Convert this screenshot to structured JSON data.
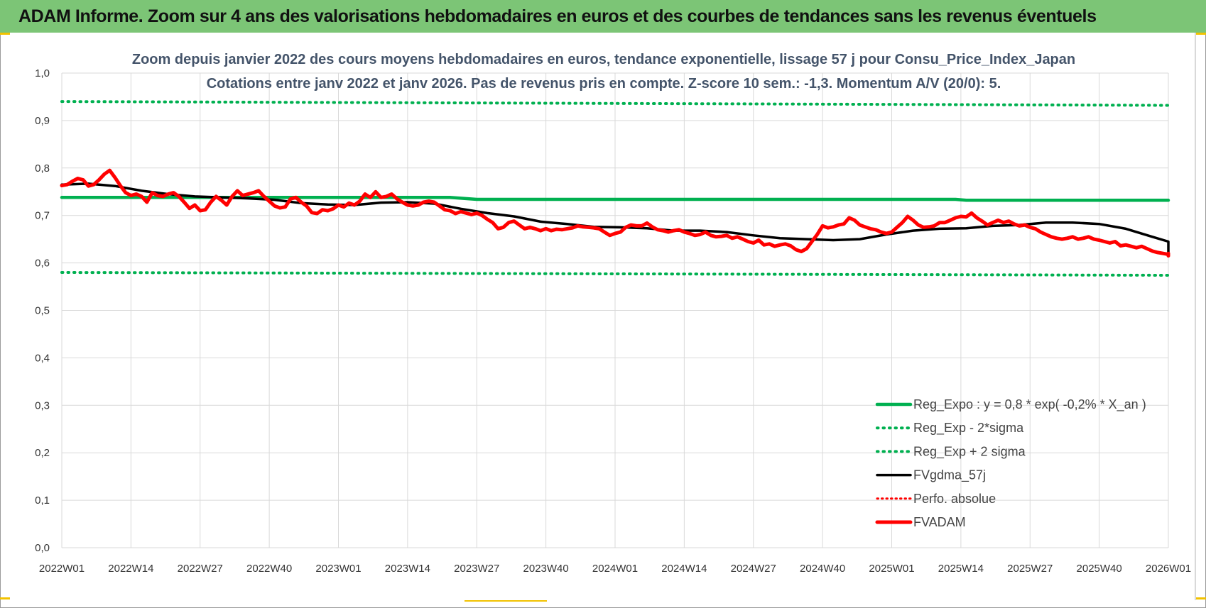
{
  "page_title": "ADAM Informe. Zoom sur 4 ans des valorisations hebdomadaires en euros et des courbes de tendances sans les revenus éventuels",
  "colors": {
    "title_bar": "#7cc576",
    "reg_expo": "#00b050",
    "sigma_bands": "#00b050",
    "fvgdma": "#000000",
    "perfo": "#ff0000",
    "fvadam": "#ff0000",
    "subtitle": "#44546a",
    "grid": "#d9d9d9"
  },
  "chart_data": {
    "type": "line",
    "title": "Zoom depuis janvier 2022 des cours moyens hebdomadaires en euros, tendance exponentielle, lissage 57 j pour Consu_Price_Index_Japan",
    "subtitle": "Cotations entre janv 2022 et janv 2026. Pas de revenus pris en compte. Z-score 10 sem.: -1,3. Momentum A/V (20/0): 5.",
    "ylim": [
      0,
      1
    ],
    "y_ticks": [
      "0,0",
      "0,1",
      "0,2",
      "0,3",
      "0,4",
      "0,5",
      "0,6",
      "0,7",
      "0,8",
      "0,9",
      "1,0"
    ],
    "x_ticks": [
      "2022W01",
      "2022W14",
      "2022W27",
      "2022W40",
      "2023W01",
      "2023W14",
      "2023W27",
      "2023W40",
      "2024W01",
      "2024W14",
      "2024W27",
      "2024W40",
      "2025W01",
      "2025W14",
      "2025W27",
      "2025W40",
      "2026W01"
    ],
    "grid": true,
    "legend_position": "bottom-right",
    "series": [
      {
        "name": "Reg_Expo : y = 0,8 * exp( -0,2% *  X_an )",
        "style": "solid",
        "points": [
          [
            0,
            0.738
          ],
          [
            73,
            0.738
          ],
          [
            78,
            0.734
          ],
          [
            168,
            0.734
          ],
          [
            170,
            0.732
          ],
          [
            208,
            0.732
          ]
        ]
      },
      {
        "name": "Reg_Exp - 2*sigma",
        "style": "dotted",
        "points": [
          [
            0,
            0.58
          ],
          [
            208,
            0.574
          ]
        ]
      },
      {
        "name": "Reg_Exp + 2 sigma",
        "style": "dotted",
        "points": [
          [
            0,
            0.94
          ],
          [
            208,
            0.932
          ]
        ]
      },
      {
        "name": "FVgdma_57j",
        "style": "solid",
        "points": [
          [
            0,
            0.765
          ],
          [
            5,
            0.767
          ],
          [
            10,
            0.762
          ],
          [
            15,
            0.752
          ],
          [
            20,
            0.745
          ],
          [
            25,
            0.74
          ],
          [
            30,
            0.738
          ],
          [
            35,
            0.736
          ],
          [
            40,
            0.733
          ],
          [
            45,
            0.726
          ],
          [
            50,
            0.723
          ],
          [
            55,
            0.722
          ],
          [
            60,
            0.727
          ],
          [
            65,
            0.728
          ],
          [
            70,
            0.725
          ],
          [
            75,
            0.714
          ],
          [
            80,
            0.705
          ],
          [
            85,
            0.698
          ],
          [
            90,
            0.687
          ],
          [
            95,
            0.682
          ],
          [
            100,
            0.676
          ],
          [
            105,
            0.675
          ],
          [
            110,
            0.673
          ],
          [
            115,
            0.668
          ],
          [
            120,
            0.668
          ],
          [
            125,
            0.665
          ],
          [
            130,
            0.658
          ],
          [
            135,
            0.652
          ],
          [
            140,
            0.65
          ],
          [
            145,
            0.648
          ],
          [
            150,
            0.65
          ],
          [
            155,
            0.66
          ],
          [
            160,
            0.668
          ],
          [
            165,
            0.672
          ],
          [
            170,
            0.673
          ],
          [
            175,
            0.678
          ],
          [
            180,
            0.68
          ],
          [
            185,
            0.685
          ],
          [
            190,
            0.685
          ],
          [
            195,
            0.682
          ],
          [
            200,
            0.672
          ],
          [
            205,
            0.655
          ],
          [
            210,
            0.645
          ],
          [
            215,
            0.635
          ],
          [
            220,
            0.627
          ],
          [
            225,
            0.62
          ]
        ]
      },
      {
        "name": "Perfo. absolue",
        "style": "dotted",
        "points": []
      },
      {
        "name": "FVADAM",
        "style": "solid",
        "points": [
          [
            0,
            0.763
          ],
          [
            1,
            0.765
          ],
          [
            2,
            0.772
          ],
          [
            3,
            0.778
          ],
          [
            4,
            0.775
          ],
          [
            5,
            0.762
          ],
          [
            6,
            0.765
          ],
          [
            7,
            0.775
          ],
          [
            8,
            0.787
          ],
          [
            9,
            0.795
          ],
          [
            10,
            0.78
          ],
          [
            11,
            0.763
          ],
          [
            12,
            0.748
          ],
          [
            13,
            0.742
          ],
          [
            14,
            0.745
          ],
          [
            15,
            0.74
          ],
          [
            16,
            0.728
          ],
          [
            17,
            0.748
          ],
          [
            18,
            0.742
          ],
          [
            19,
            0.74
          ],
          [
            20,
            0.745
          ],
          [
            21,
            0.748
          ],
          [
            22,
            0.74
          ],
          [
            23,
            0.728
          ],
          [
            24,
            0.715
          ],
          [
            25,
            0.722
          ],
          [
            26,
            0.71
          ],
          [
            27,
            0.712
          ],
          [
            28,
            0.728
          ],
          [
            29,
            0.74
          ],
          [
            30,
            0.732
          ],
          [
            31,
            0.722
          ],
          [
            32,
            0.74
          ],
          [
            33,
            0.752
          ],
          [
            34,
            0.742
          ],
          [
            35,
            0.745
          ],
          [
            36,
            0.748
          ],
          [
            37,
            0.752
          ],
          [
            38,
            0.74
          ],
          [
            39,
            0.73
          ],
          [
            40,
            0.72
          ],
          [
            41,
            0.716
          ],
          [
            42,
            0.718
          ],
          [
            43,
            0.735
          ],
          [
            44,
            0.738
          ],
          [
            45,
            0.728
          ],
          [
            46,
            0.72
          ],
          [
            47,
            0.706
          ],
          [
            48,
            0.704
          ],
          [
            49,
            0.712
          ],
          [
            50,
            0.71
          ],
          [
            51,
            0.714
          ],
          [
            52,
            0.722
          ],
          [
            53,
            0.718
          ],
          [
            54,
            0.726
          ],
          [
            55,
            0.722
          ],
          [
            56,
            0.73
          ],
          [
            57,
            0.745
          ],
          [
            58,
            0.738
          ],
          [
            59,
            0.75
          ],
          [
            60,
            0.738
          ],
          [
            61,
            0.74
          ],
          [
            62,
            0.745
          ],
          [
            63,
            0.735
          ],
          [
            64,
            0.728
          ],
          [
            65,
            0.722
          ],
          [
            66,
            0.72
          ],
          [
            67,
            0.722
          ],
          [
            68,
            0.728
          ],
          [
            69,
            0.73
          ],
          [
            70,
            0.728
          ],
          [
            71,
            0.72
          ],
          [
            72,
            0.712
          ],
          [
            73,
            0.71
          ],
          [
            74,
            0.704
          ],
          [
            75,
            0.708
          ],
          [
            76,
            0.705
          ],
          [
            77,
            0.702
          ],
          [
            78,
            0.705
          ],
          [
            79,
            0.7
          ],
          [
            80,
            0.692
          ],
          [
            81,
            0.685
          ],
          [
            82,
            0.672
          ],
          [
            83,
            0.675
          ],
          [
            84,
            0.685
          ],
          [
            85,
            0.688
          ],
          [
            86,
            0.68
          ],
          [
            87,
            0.672
          ],
          [
            88,
            0.675
          ],
          [
            89,
            0.672
          ],
          [
            90,
            0.668
          ],
          [
            91,
            0.672
          ],
          [
            92,
            0.668
          ],
          [
            93,
            0.671
          ],
          [
            94,
            0.67
          ],
          [
            95,
            0.672
          ],
          [
            96,
            0.674
          ],
          [
            97,
            0.678
          ],
          [
            98,
            0.676
          ],
          [
            99,
            0.675
          ],
          [
            100,
            0.674
          ],
          [
            101,
            0.672
          ],
          [
            102,
            0.665
          ],
          [
            103,
            0.658
          ],
          [
            104,
            0.662
          ],
          [
            105,
            0.665
          ],
          [
            106,
            0.675
          ],
          [
            107,
            0.68
          ],
          [
            108,
            0.678
          ],
          [
            109,
            0.678
          ],
          [
            110,
            0.684
          ],
          [
            111,
            0.676
          ],
          [
            112,
            0.67
          ],
          [
            113,
            0.668
          ],
          [
            114,
            0.665
          ],
          [
            115,
            0.668
          ],
          [
            116,
            0.67
          ],
          [
            117,
            0.665
          ],
          [
            118,
            0.662
          ],
          [
            119,
            0.658
          ],
          [
            120,
            0.66
          ],
          [
            121,
            0.665
          ],
          [
            122,
            0.658
          ],
          [
            123,
            0.655
          ],
          [
            124,
            0.656
          ],
          [
            125,
            0.658
          ],
          [
            126,
            0.652
          ],
          [
            127,
            0.655
          ],
          [
            128,
            0.65
          ],
          [
            129,
            0.645
          ],
          [
            130,
            0.642
          ],
          [
            131,
            0.648
          ],
          [
            132,
            0.638
          ],
          [
            133,
            0.64
          ],
          [
            134,
            0.635
          ],
          [
            135,
            0.638
          ],
          [
            136,
            0.64
          ],
          [
            137,
            0.636
          ],
          [
            138,
            0.628
          ],
          [
            139,
            0.624
          ],
          [
            140,
            0.63
          ],
          [
            141,
            0.645
          ],
          [
            142,
            0.66
          ],
          [
            143,
            0.678
          ],
          [
            144,
            0.674
          ],
          [
            145,
            0.676
          ],
          [
            146,
            0.68
          ],
          [
            147,
            0.682
          ],
          [
            148,
            0.695
          ],
          [
            149,
            0.69
          ],
          [
            150,
            0.68
          ],
          [
            151,
            0.676
          ],
          [
            152,
            0.672
          ],
          [
            153,
            0.67
          ],
          [
            154,
            0.665
          ],
          [
            155,
            0.662
          ],
          [
            156,
            0.665
          ],
          [
            157,
            0.675
          ],
          [
            158,
            0.685
          ],
          [
            159,
            0.698
          ],
          [
            160,
            0.69
          ],
          [
            161,
            0.68
          ],
          [
            162,
            0.675
          ],
          [
            163,
            0.676
          ],
          [
            164,
            0.678
          ],
          [
            165,
            0.685
          ],
          [
            166,
            0.685
          ],
          [
            167,
            0.69
          ],
          [
            168,
            0.695
          ],
          [
            169,
            0.698
          ],
          [
            170,
            0.697
          ],
          [
            171,
            0.705
          ],
          [
            172,
            0.695
          ],
          [
            173,
            0.688
          ],
          [
            174,
            0.68
          ],
          [
            175,
            0.685
          ],
          [
            176,
            0.69
          ],
          [
            177,
            0.685
          ],
          [
            178,
            0.688
          ],
          [
            179,
            0.682
          ],
          [
            180,
            0.678
          ],
          [
            181,
            0.68
          ],
          [
            182,
            0.675
          ],
          [
            183,
            0.672
          ],
          [
            184,
            0.665
          ],
          [
            185,
            0.66
          ],
          [
            186,
            0.655
          ],
          [
            187,
            0.652
          ],
          [
            188,
            0.65
          ],
          [
            189,
            0.652
          ],
          [
            190,
            0.655
          ],
          [
            191,
            0.65
          ],
          [
            192,
            0.652
          ],
          [
            193,
            0.655
          ],
          [
            194,
            0.65
          ],
          [
            195,
            0.648
          ],
          [
            196,
            0.645
          ],
          [
            197,
            0.642
          ],
          [
            198,
            0.645
          ],
          [
            199,
            0.636
          ],
          [
            200,
            0.638
          ],
          [
            201,
            0.635
          ],
          [
            202,
            0.632
          ],
          [
            203,
            0.635
          ],
          [
            204,
            0.63
          ],
          [
            205,
            0.625
          ],
          [
            206,
            0.622
          ],
          [
            207,
            0.62
          ],
          [
            208,
            0.618
          ],
          [
            209,
            0.62
          ],
          [
            210,
            0.618
          ],
          [
            211,
            0.615
          ],
          [
            212,
            0.615
          ]
        ]
      }
    ]
  }
}
